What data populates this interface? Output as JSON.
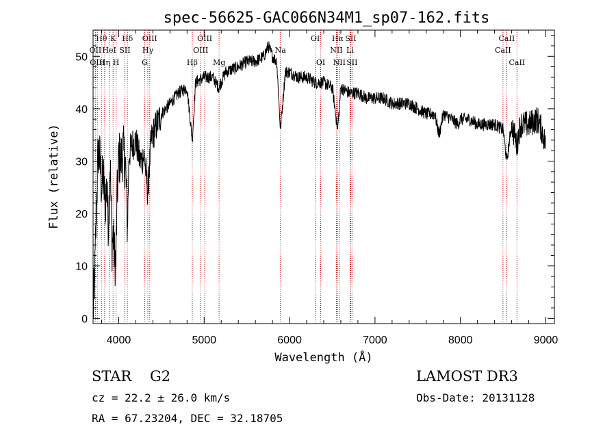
{
  "figure": {
    "title": "spec-56625-GAC066N34M1_sp07-162.fits",
    "obj_class": "STAR",
    "subclass": "G2",
    "survey": "LAMOST DR3",
    "cz": "cz = 22.2 ± 26.0 km/s",
    "obs_date": "Obs-Date: 20131128",
    "radec": "RA =  67.23204, DEC =  32.18705",
    "line_color": "#000000",
    "marker_color": "#cc0000"
  },
  "chart_data": {
    "type": "line",
    "title": "spec-56625-GAC066N34M1_sp07-162.fits",
    "xlabel": "Wavelength (Å)",
    "ylabel": "Flux (relative)",
    "xlim": [
      3700,
      9100
    ],
    "ylim": [
      -1,
      55
    ],
    "xticks": [
      4000,
      5000,
      6000,
      7000,
      8000,
      9000
    ],
    "yticks": [
      0,
      10,
      20,
      30,
      40,
      50
    ],
    "series": [
      {
        "name": "flux",
        "x": [
          3700,
          3720,
          3740,
          3760,
          3780,
          3800,
          3820,
          3840,
          3860,
          3880,
          3900,
          3920,
          3935,
          3950,
          3968,
          3980,
          4000,
          4020,
          4050,
          4080,
          4102,
          4120,
          4150,
          4200,
          4250,
          4300,
          4340,
          4380,
          4420,
          4500,
          4600,
          4700,
          4800,
          4861,
          4900,
          5000,
          5100,
          5172,
          5250,
          5400,
          5500,
          5600,
          5700,
          5750,
          5800,
          5850,
          5893,
          5950,
          6000,
          6100,
          6200,
          6300,
          6400,
          6500,
          6563,
          6600,
          6700,
          6800,
          6900,
          7000,
          7100,
          7200,
          7300,
          7400,
          7500,
          7600,
          7700,
          7750,
          7800,
          7900,
          7970,
          8000,
          8100,
          8200,
          8300,
          8400,
          8500,
          8542,
          8600,
          8662,
          8700,
          8800,
          8900,
          8950,
          9000
        ],
        "values": [
          1,
          8,
          22,
          32,
          30,
          25,
          27,
          22,
          25,
          18,
          30,
          14,
          16,
          12,
          11,
          22,
          31,
          30,
          32,
          29,
          17,
          31,
          33,
          34,
          30,
          31,
          24,
          34,
          36,
          39,
          41,
          43,
          44,
          34,
          45,
          46,
          46,
          44,
          47,
          48,
          49,
          49,
          50,
          52,
          50,
          49,
          36,
          47,
          47,
          46,
          46,
          45,
          45,
          44,
          36,
          44,
          43,
          43,
          42,
          42,
          42,
          41,
          41,
          41,
          40,
          39,
          39,
          35,
          39,
          38,
          37,
          38,
          38,
          37,
          37,
          37,
          36,
          30,
          37,
          33,
          37,
          37,
          38,
          36,
          33
        ]
      }
    ],
    "line_markers": [
      {
        "label": "Hθ",
        "x": 3798,
        "row": 0
      },
      {
        "label": "OII",
        "x": 3727,
        "row": 1
      },
      {
        "label": "OIII",
        "x": 3750,
        "row": 2
      },
      {
        "label": "K",
        "x": 3934,
        "row": 0
      },
      {
        "label": "HeI",
        "x": 3889,
        "row": 1
      },
      {
        "label": "Hη",
        "x": 3835,
        "row": 2
      },
      {
        "label": "H",
        "x": 3969,
        "row": 2
      },
      {
        "label": "Hδ",
        "x": 4102,
        "row": 0
      },
      {
        "label": "SII",
        "x": 4072,
        "row": 1
      },
      {
        "label": "OIII",
        "x": 4363,
        "row": 0
      },
      {
        "label": "Hγ",
        "x": 4341,
        "row": 1
      },
      {
        "label": "G",
        "x": 4305,
        "row": 2
      },
      {
        "label": "Hβ",
        "x": 4861,
        "row": 2
      },
      {
        "label": "OIII",
        "x": 5007,
        "row": 0
      },
      {
        "label": "OIII",
        "x": 4959,
        "row": 1
      },
      {
        "label": "Mg",
        "x": 5175,
        "row": 2
      },
      {
        "label": "Na",
        "x": 5893,
        "row": 1
      },
      {
        "label": "OI",
        "x": 6300,
        "row": 0
      },
      {
        "label": "OI",
        "x": 6364,
        "row": 2
      },
      {
        "label": "Hα",
        "x": 6563,
        "row": 0
      },
      {
        "label": "NII",
        "x": 6548,
        "row": 1
      },
      {
        "label": "NII",
        "x": 6583,
        "row": 2
      },
      {
        "label": "SII",
        "x": 6716,
        "row": 0
      },
      {
        "label": "Li",
        "x": 6708,
        "row": 1
      },
      {
        "label": "SII",
        "x": 6731,
        "row": 2
      },
      {
        "label": "CaII",
        "x": 8542,
        "row": 0
      },
      {
        "label": "CaII",
        "x": 8498,
        "row": 1
      },
      {
        "label": "CaII",
        "x": 8662,
        "row": 2
      }
    ]
  }
}
